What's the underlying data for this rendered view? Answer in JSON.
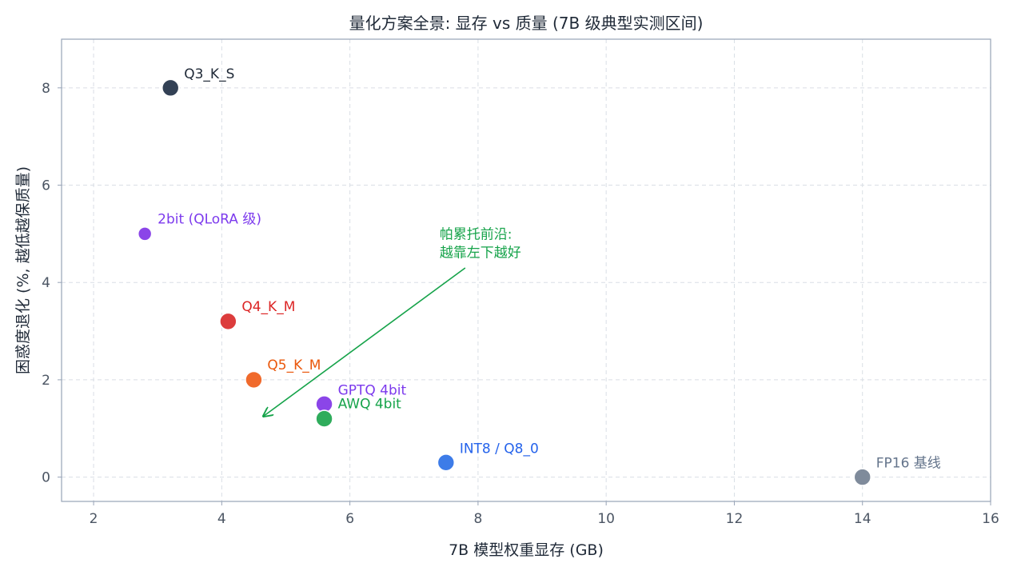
{
  "chart_data": {
    "type": "scatter",
    "title": "量化方案全景: 显存 vs 质量 (7B 级典型实测区间)",
    "xlabel": "7B 模型权重显存 (GB)",
    "ylabel": "困惑度退化 (%, 越低越保质量)",
    "xlim": [
      1.5,
      16
    ],
    "ylim": [
      -0.5,
      9
    ],
    "xticks": [
      2,
      4,
      6,
      8,
      10,
      12,
      14,
      16
    ],
    "yticks": [
      0,
      2,
      4,
      6,
      8
    ],
    "grid": true,
    "points": [
      {
        "label": "Q3_K_S",
        "x": 3.2,
        "y": 8.0,
        "color": "#334155",
        "text_color": "#1f2937",
        "size": "large"
      },
      {
        "label": "2bit (QLoRA 级)",
        "x": 2.8,
        "y": 5.0,
        "color": "#8b45e8",
        "text_color": "#7c3aed",
        "size": "small"
      },
      {
        "label": "Q4_K_M",
        "x": 4.1,
        "y": 3.2,
        "color": "#dc3c3c",
        "text_color": "#dc2626",
        "size": "large"
      },
      {
        "label": "Q5_K_M",
        "x": 4.5,
        "y": 2.0,
        "color": "#f06a2c",
        "text_color": "#ea580c",
        "size": "large"
      },
      {
        "label": "GPTQ 4bit",
        "x": 5.6,
        "y": 1.5,
        "color": "#8b45e8",
        "text_color": "#7c3aed",
        "size": "large"
      },
      {
        "label": "AWQ 4bit",
        "x": 5.6,
        "y": 1.2,
        "color": "#2fac5c",
        "text_color": "#16a34a",
        "size": "large"
      },
      {
        "label": "INT8 / Q8_0",
        "x": 7.5,
        "y": 0.3,
        "color": "#3d7ce8",
        "text_color": "#2563eb",
        "size": "large"
      },
      {
        "label": "FP16 基线",
        "x": 14.0,
        "y": 0.0,
        "color": "#7f8b9b",
        "text_color": "#64748b",
        "size": "large"
      }
    ],
    "annotation": {
      "lines": [
        "帕累托前沿:",
        "越靠左下越好"
      ],
      "text_x": 7.4,
      "text_y": 4.9,
      "arrow_from": [
        7.8,
        4.3
      ],
      "arrow_to": [
        4.65,
        1.25
      ],
      "color": "#16a34a"
    }
  }
}
